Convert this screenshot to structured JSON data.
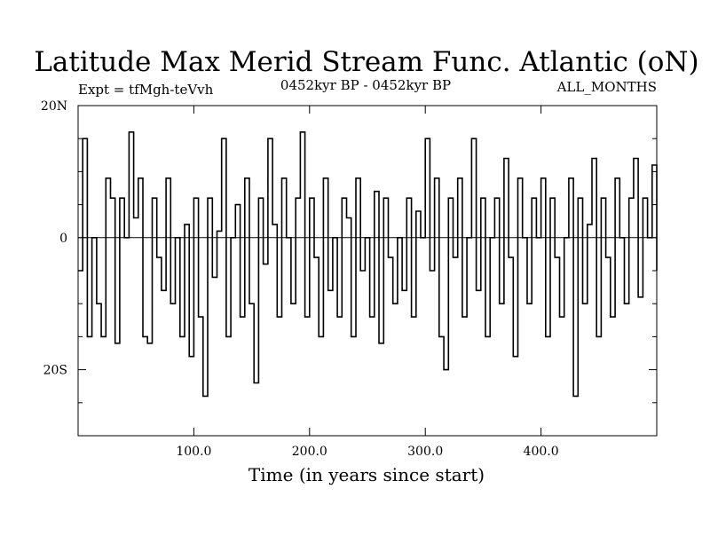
{
  "chart_data": {
    "type": "line",
    "title": "Latitude Max Merid Stream Func. Atlantic (oN)",
    "subtitle_left": "Expt = tfMgh-teVvh",
    "subtitle_center": "0452kyr BP - 0452kyr BP",
    "subtitle_right": "ALL_MONTHS",
    "xlabel": "Time (in years since start)",
    "ylabel": "",
    "xlim": [
      0,
      500
    ],
    "ylim": [
      -30,
      20
    ],
    "x_ticks": [
      100,
      200,
      300,
      400
    ],
    "x_tick_labels": [
      "100.0",
      "200.0",
      "300.0",
      "400.0"
    ],
    "y_ticks": [
      20,
      0,
      -20
    ],
    "y_tick_labels": [
      "20N",
      "0",
      "20S"
    ],
    "y_minor_ticks": [
      15,
      10,
      5,
      -5,
      -10,
      -15,
      -25
    ],
    "zero_line": true,
    "grid": false,
    "legend": "none",
    "line_color": "#000000",
    "x": [
      0,
      4,
      8,
      12,
      16,
      20,
      24,
      28,
      32,
      36,
      40,
      44,
      48,
      52,
      56,
      60,
      64,
      68,
      72,
      76,
      80,
      84,
      88,
      92,
      96,
      100,
      104,
      108,
      112,
      116,
      120,
      124,
      128,
      132,
      136,
      140,
      144,
      148,
      152,
      156,
      160,
      164,
      168,
      172,
      176,
      180,
      184,
      188,
      192,
      196,
      200,
      204,
      208,
      212,
      216,
      220,
      224,
      228,
      232,
      236,
      240,
      244,
      248,
      252,
      256,
      260,
      264,
      268,
      272,
      276,
      280,
      284,
      288,
      292,
      296,
      300,
      304,
      308,
      312,
      316,
      320,
      324,
      328,
      332,
      336,
      340,
      344,
      348,
      352,
      356,
      360,
      364,
      368,
      372,
      376,
      380,
      384,
      388,
      392,
      396,
      400,
      404,
      408,
      412,
      416,
      420,
      424,
      428,
      432,
      436,
      440,
      444,
      448,
      452,
      456,
      460,
      464,
      468,
      472,
      476,
      480,
      484,
      488,
      492,
      496,
      500
    ],
    "values": [
      -5,
      15,
      -15,
      0,
      -10,
      -15,
      9,
      6,
      -16,
      6,
      0,
      16,
      3,
      9,
      -15,
      -16,
      6,
      -3,
      -8,
      9,
      -10,
      0,
      -15,
      2,
      -18,
      6,
      -12,
      -24,
      6,
      -6,
      1,
      15,
      -15,
      0,
      5,
      -12,
      9,
      -10,
      -22,
      6,
      -4,
      15,
      2,
      -12,
      9,
      0,
      -10,
      6,
      16,
      -12,
      6,
      -3,
      -15,
      9,
      -8,
      0,
      -12,
      6,
      3,
      -15,
      9,
      -5,
      0,
      -12,
      7,
      -16,
      6,
      -3,
      -10,
      0,
      -8,
      6,
      -12,
      4,
      0,
      15,
      -5,
      9,
      -15,
      -20,
      6,
      -3,
      9,
      -12,
      0,
      15,
      -8,
      6,
      -15,
      0,
      6,
      -10,
      12,
      -3,
      -18,
      9,
      0,
      -10,
      6,
      0,
      9,
      -15,
      6,
      -3,
      -12,
      0,
      9,
      -24,
      6,
      -10,
      2,
      12,
      -15,
      6,
      -3,
      -12,
      9,
      0,
      -10,
      6,
      12,
      -9,
      6,
      0,
      11,
      -5
    ]
  }
}
